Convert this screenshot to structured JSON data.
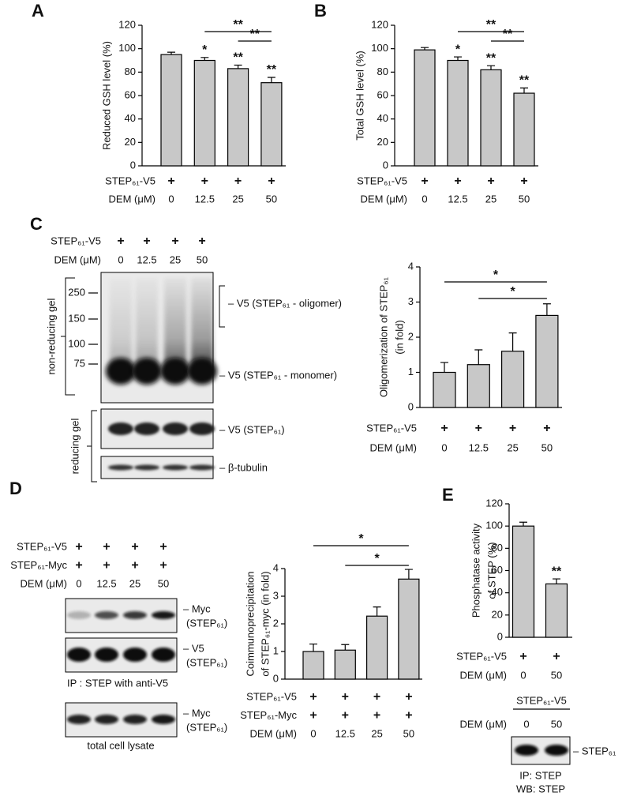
{
  "chart_data": [
    {
      "type": "bar",
      "panel": "A",
      "y_label": [
        "Reduced GSH level (%)"
      ],
      "categories": [
        "0",
        "12.5",
        "25",
        "50"
      ],
      "category_label": "DEM (μM)",
      "conditions": [
        {
          "label": "STEP₆₁-V5",
          "marks": [
            "+",
            "+",
            "+",
            "+"
          ]
        }
      ],
      "values": [
        95,
        90,
        83,
        71
      ],
      "errors": [
        2,
        2.5,
        3,
        4.5
      ],
      "bar_labels": [
        null,
        "*",
        "**",
        "**"
      ],
      "brackets": [
        {
          "from": "12.5",
          "to": "50",
          "label": "**"
        },
        {
          "from": "25",
          "to": "50",
          "label": "**"
        }
      ],
      "ylim": [
        0,
        120
      ],
      "yticks": [
        0,
        20,
        40,
        60,
        80,
        100,
        120
      ],
      "color": "#c8c8c8"
    },
    {
      "type": "bar",
      "panel": "B",
      "y_label": [
        "Total GSH level (%)"
      ],
      "categories": [
        "0",
        "12.5",
        "25",
        "50"
      ],
      "category_label": "DEM (μM)",
      "conditions": [
        {
          "label": "STEP₆₁-V5",
          "marks": [
            "+",
            "+",
            "+",
            "+"
          ]
        }
      ],
      "values": [
        99,
        90,
        82,
        62
      ],
      "errors": [
        2,
        3,
        3.5,
        4.5
      ],
      "bar_labels": [
        null,
        "*",
        "**",
        "**"
      ],
      "brackets": [
        {
          "from": "12.5",
          "to": "50",
          "label": "**"
        },
        {
          "from": "25",
          "to": "50",
          "label": "**"
        }
      ],
      "ylim": [
        0,
        120
      ],
      "yticks": [
        0,
        20,
        40,
        60,
        80,
        100,
        120
      ],
      "color": "#c8c8c8"
    },
    {
      "type": "bar",
      "panel": "C",
      "y_label": [
        "Oligomerization of STEP₆₁",
        "(in fold)"
      ],
      "categories": [
        "0",
        "12.5",
        "25",
        "50"
      ],
      "category_label": "DEM (μM)",
      "conditions": [
        {
          "label": "STEP₆₁-V5",
          "marks": [
            "+",
            "+",
            "+",
            "+"
          ]
        }
      ],
      "values": [
        1.0,
        1.22,
        1.6,
        2.62
      ],
      "errors": [
        0.28,
        0.42,
        0.52,
        0.33
      ],
      "bar_labels": [
        null,
        null,
        null,
        null
      ],
      "brackets": [
        {
          "from": "0",
          "to": "50",
          "label": "*"
        },
        {
          "from": "12.5",
          "to": "50",
          "label": "*"
        }
      ],
      "ylim": [
        0,
        4
      ],
      "yticks": [
        0,
        1,
        2,
        3,
        4
      ],
      "color": "#c8c8c8"
    },
    {
      "type": "bar",
      "panel": "D",
      "y_label": [
        "Coimmunoprecipitation",
        "of STEP₆₁-myc (in fold)"
      ],
      "categories": [
        "0",
        "12.5",
        "25",
        "50"
      ],
      "category_label": "DEM (μM)",
      "conditions": [
        {
          "label": "STEP₆₁-V5",
          "marks": [
            "+",
            "+",
            "+",
            "+"
          ]
        },
        {
          "label": "STEP₆₁-Myc",
          "marks": [
            "+",
            "+",
            "+",
            "+"
          ]
        }
      ],
      "values": [
        1.0,
        1.05,
        2.28,
        3.62
      ],
      "errors": [
        0.27,
        0.2,
        0.33,
        0.35
      ],
      "bar_labels": [
        null,
        null,
        null,
        null
      ],
      "brackets": [
        {
          "from": "0",
          "to": "50",
          "label": "*"
        },
        {
          "from": "12.5",
          "to": "50",
          "label": "*"
        }
      ],
      "ylim": [
        0,
        4
      ],
      "yticks": [
        0,
        1,
        2,
        3,
        4
      ],
      "color": "#c8c8c8"
    },
    {
      "type": "bar",
      "panel": "E",
      "y_label": [
        "Phosphatase activity",
        "of STEP (%)"
      ],
      "categories": [
        "0",
        "50"
      ],
      "category_label": "DEM (μM)",
      "conditions": [
        {
          "label": "STEP₆₁-V5",
          "marks": [
            "+",
            "+"
          ]
        }
      ],
      "values": [
        100,
        48
      ],
      "errors": [
        3.5,
        4.5
      ],
      "bar_labels": [
        null,
        "**"
      ],
      "brackets": [],
      "ylim": [
        0,
        120
      ],
      "yticks": [
        0,
        20,
        40,
        60,
        80,
        100,
        120
      ],
      "color": "#c8c8c8"
    }
  ],
  "blot_c": {
    "conditions": [
      {
        "label": "STEP₆₁-V5",
        "marks": [
          "+",
          "+",
          "+",
          "+"
        ]
      },
      {
        "label": "DEM (μM)",
        "marks": [
          "0",
          "12.5",
          "25",
          "50"
        ]
      }
    ],
    "markers": [
      "250",
      "150",
      "100",
      "75"
    ],
    "gel_labels": [
      "non-reducing gel",
      "reducing gel"
    ],
    "band_labels": [
      "– V5 (STEP₆₁ - oligomer)",
      "– V5 (STEP₆₁ - monomer)",
      "– V5 (STEP₆₁)",
      "– β-tubulin"
    ]
  },
  "blot_d": {
    "conditions": [
      {
        "label": "STEP₆₁-V5",
        "marks": [
          "+",
          "+",
          "+",
          "+"
        ]
      },
      {
        "label": "STEP₆₁-Myc",
        "marks": [
          "+",
          "+",
          "+",
          "+"
        ]
      },
      {
        "label": "DEM (μM)",
        "marks": [
          "0",
          "12.5",
          "25",
          "50"
        ]
      }
    ],
    "band_labels": [
      [
        "– Myc",
        "(STEP₆₁)"
      ],
      [
        "– V5",
        "(STEP₆₁)"
      ],
      [
        "– Myc",
        "(STEP₆₁)"
      ]
    ],
    "captions": [
      "IP : STEP with anti-V5",
      "total cell lysate"
    ]
  },
  "blot_e": {
    "header": "STEP₆₁-V5",
    "conditions": [
      {
        "label": "DEM (μM)",
        "marks": [
          "0",
          "50"
        ]
      }
    ],
    "band_label": "– STEP₆₁",
    "captions": [
      "IP: STEP",
      "WB: STEP"
    ]
  }
}
